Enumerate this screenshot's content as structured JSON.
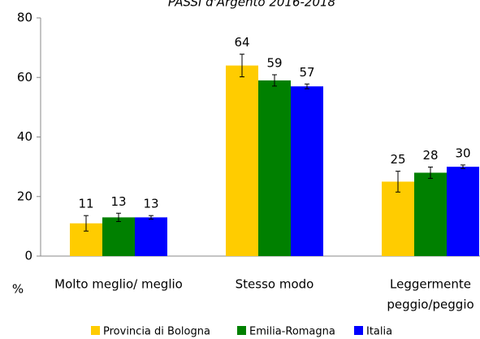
{
  "chart_data": {
    "type": "bar",
    "title": "PASSI d'Argento 2016-2018",
    "y_label": "%",
    "categories": [
      "Molto meglio/  meglio",
      "Stesso modo",
      [
        "Leggermente",
        "peggio/peggio"
      ]
    ],
    "series": [
      {
        "name": "Provincia di Bologna",
        "color": "#ffcc00",
        "values": [
          11,
          64,
          25
        ],
        "errors": [
          2.6,
          3.8,
          3.5
        ]
      },
      {
        "name": "Emilia-Romagna",
        "color": "#008000",
        "values": [
          13,
          59,
          28
        ],
        "errors": [
          1.4,
          1.9,
          1.9
        ]
      },
      {
        "name": "Italia",
        "color": "#0000ff",
        "values": [
          13,
          57,
          30
        ],
        "errors": [
          0.6,
          0.8,
          0.6
        ]
      }
    ],
    "ylim": [
      0,
      80
    ],
    "yticks": [
      0,
      20,
      40,
      60,
      80
    ],
    "grid": false
  }
}
